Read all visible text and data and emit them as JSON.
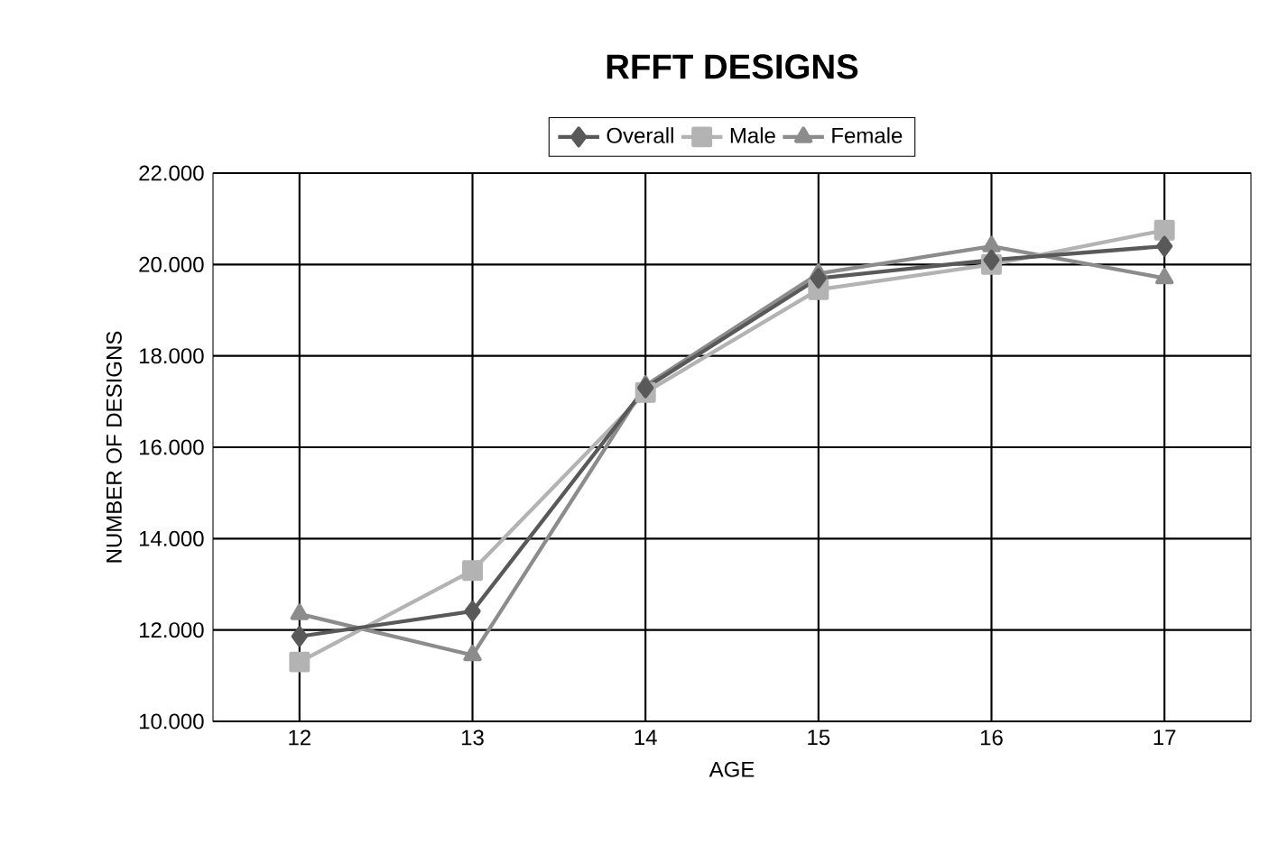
{
  "chart_data": {
    "type": "line",
    "title": "RFFT DESIGNS",
    "xlabel": "AGE",
    "ylabel": "NUMBER OF DESIGNS",
    "categories": [
      "12",
      "13",
      "14",
      "15",
      "16",
      "17"
    ],
    "series": [
      {
        "name": "Overall",
        "color": "#595959",
        "marker": "diamond",
        "values": [
          11.86,
          12.41,
          17.3,
          19.7,
          20.1,
          20.4
        ]
      },
      {
        "name": "Male",
        "color": "#b3b3b3",
        "marker": "square",
        "values": [
          11.3,
          13.3,
          17.2,
          19.45,
          20.0,
          20.75
        ]
      },
      {
        "name": "Female",
        "color": "#8c8c8c",
        "marker": "triangle",
        "values": [
          12.35,
          11.45,
          17.35,
          19.8,
          20.4,
          19.7
        ]
      }
    ],
    "ylim": [
      10,
      22
    ],
    "yticks": [
      {
        "value": 10,
        "label": "10.000"
      },
      {
        "value": 12,
        "label": "12.000"
      },
      {
        "value": 14,
        "label": "14.000"
      },
      {
        "value": 16,
        "label": "16.000"
      },
      {
        "value": 18,
        "label": "18.000"
      },
      {
        "value": 20,
        "label": "20.000"
      },
      {
        "value": 22,
        "label": "22.000"
      }
    ],
    "grid": true,
    "legend": "top"
  }
}
